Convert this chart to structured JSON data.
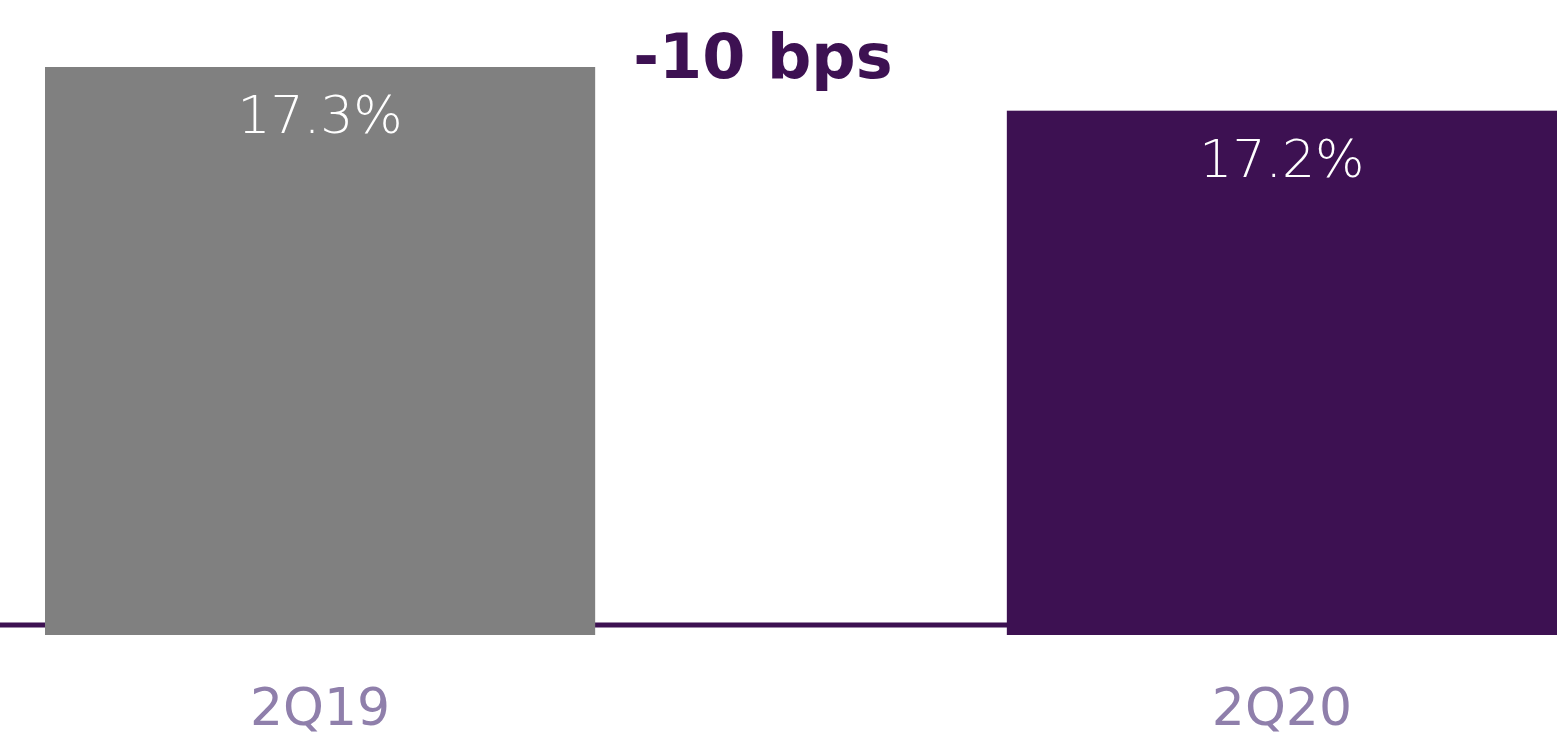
{
  "chart_data": {
    "type": "bar",
    "categories": [
      "2Q19",
      "2Q20"
    ],
    "values": [
      17.3,
      17.2
    ],
    "colors": [
      "#808080",
      "#3d1152"
    ],
    "value_labels": [
      "17.3%",
      "17.2%"
    ],
    "ylim": [
      16,
      17.3
    ],
    "annotations": [
      "-10 bps"
    ]
  }
}
